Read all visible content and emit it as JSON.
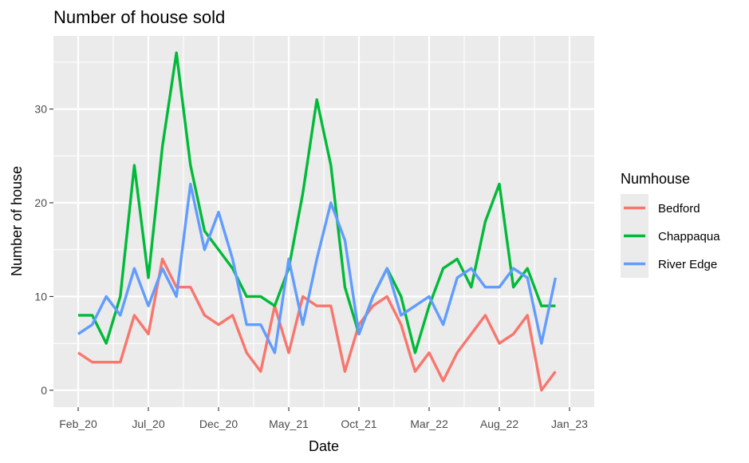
{
  "chart_data": {
    "type": "line",
    "title": "Number of house sold",
    "xlabel": "Date",
    "ylabel": "Number of house",
    "legend_title": "Numhouse",
    "legend_position": "right",
    "grid": true,
    "x_ticks": [
      "Feb_20",
      "Jul_20",
      "Dec_20",
      "May_21",
      "Oct_21",
      "Mar_22",
      "Aug_22",
      "Jan_23"
    ],
    "x": [
      "Feb_20",
      "Mar_20",
      "Apr_20",
      "May_20",
      "Jun_20",
      "Jul_20",
      "Aug_20",
      "Sep_20",
      "Oct_20",
      "Nov_20",
      "Dec_20",
      "Jan_21",
      "Feb_21",
      "Mar_21",
      "Apr_21",
      "May_21",
      "Jun_21",
      "Jul_21",
      "Aug_21",
      "Sep_21",
      "Oct_21",
      "Nov_21",
      "Dec_21",
      "Jan_22",
      "Feb_22",
      "Mar_22",
      "Apr_22",
      "May_22",
      "Jun_22",
      "Jul_22",
      "Aug_22",
      "Sep_22",
      "Oct_22",
      "Nov_22",
      "Dec_22",
      "Jan_23"
    ],
    "y_ticks": [
      0,
      10,
      20,
      30
    ],
    "ylim": [
      -1.8,
      37.8
    ],
    "series": [
      {
        "name": "Bedford",
        "color": "#f8766d",
        "values": [
          4,
          3,
          3,
          3,
          8,
          6,
          14,
          11,
          11,
          8,
          7,
          8,
          4,
          2,
          9,
          4,
          10,
          9,
          9,
          2,
          7,
          9,
          10,
          7,
          2,
          4,
          1,
          4,
          6,
          8,
          5,
          6,
          8,
          0,
          2,
          null
        ]
      },
      {
        "name": "Chappaqua",
        "color": "#00ba38",
        "values": [
          8,
          8,
          5,
          10,
          24,
          12,
          26,
          36,
          24,
          17,
          15,
          13,
          10,
          10,
          9,
          13,
          21,
          31,
          24,
          11,
          6,
          10,
          13,
          10,
          4,
          9,
          13,
          14,
          11,
          18,
          22,
          11,
          13,
          9,
          9,
          null
        ]
      },
      {
        "name": "River Edge",
        "color": "#619cff",
        "values": [
          6,
          7,
          10,
          8,
          13,
          9,
          13,
          10,
          22,
          15,
          19,
          14,
          7,
          7,
          4,
          14,
          7,
          14,
          20,
          16,
          6,
          10,
          13,
          8,
          9,
          10,
          7,
          12,
          13,
          11,
          11,
          13,
          12,
          5,
          12,
          null
        ]
      }
    ]
  }
}
